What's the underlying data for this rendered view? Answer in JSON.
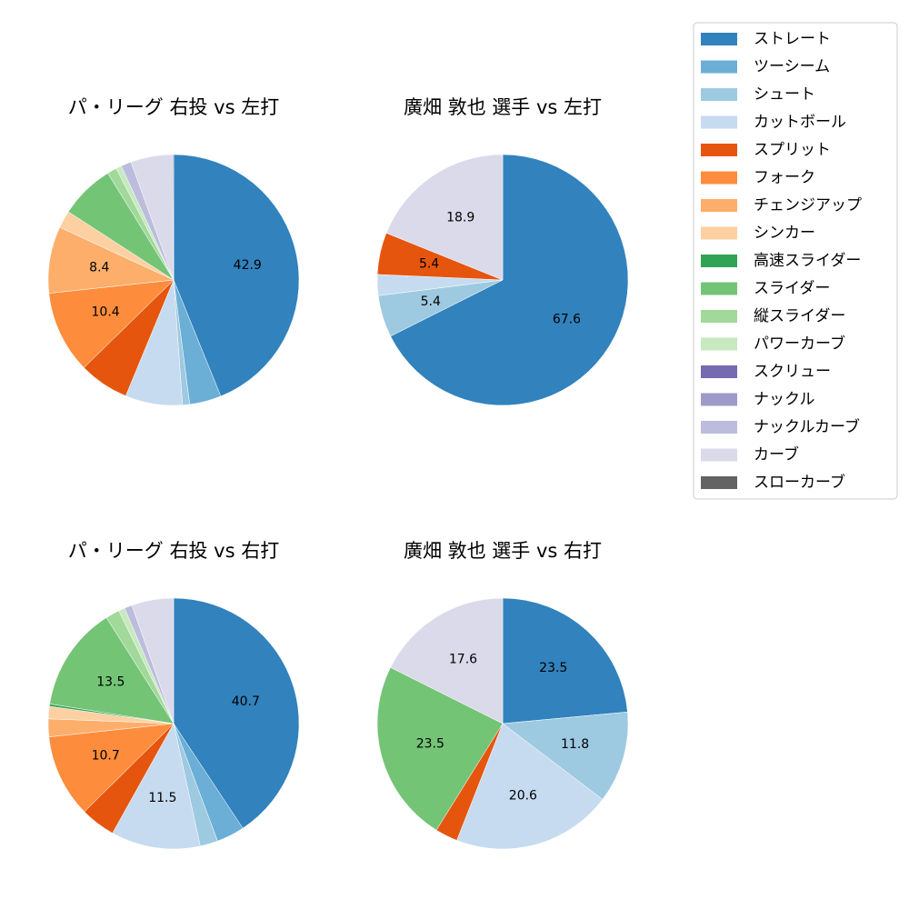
{
  "legend": [
    {
      "label": "ストレート",
      "color": "#3182bd"
    },
    {
      "label": "ツーシーム",
      "color": "#6baed6"
    },
    {
      "label": "シュート",
      "color": "#9ecae1"
    },
    {
      "label": "カットボール",
      "color": "#c6dbef"
    },
    {
      "label": "スプリット",
      "color": "#e6550d"
    },
    {
      "label": "フォーク",
      "color": "#fd8d3c"
    },
    {
      "label": "チェンジアップ",
      "color": "#fdae6b"
    },
    {
      "label": "シンカー",
      "color": "#fdd0a2"
    },
    {
      "label": "高速スライダー",
      "color": "#31a354"
    },
    {
      "label": "スライダー",
      "color": "#74c476"
    },
    {
      "label": "縦スライダー",
      "color": "#a1d99b"
    },
    {
      "label": "パワーカーブ",
      "color": "#c7e9c0"
    },
    {
      "label": "スクリュー",
      "color": "#756bb1"
    },
    {
      "label": "ナックル",
      "color": "#9e9ac8"
    },
    {
      "label": "ナックルカーブ",
      "color": "#bcbddc"
    },
    {
      "label": "カーブ",
      "color": "#dadaeb"
    },
    {
      "label": "スローカーブ",
      "color": "#636363"
    }
  ],
  "chart_data": [
    {
      "type": "pie",
      "title": "パ・リーグ 右投 vs 左打",
      "slices": [
        {
          "pitch": "ストレート",
          "value": 42.9,
          "label": "42.9"
        },
        {
          "pitch": "ツーシーム",
          "value": 4.0,
          "label": ""
        },
        {
          "pitch": "シュート",
          "value": 0.9,
          "label": ""
        },
        {
          "pitch": "カットボール",
          "value": 7.2,
          "label": ""
        },
        {
          "pitch": "スプリット",
          "value": 6.3,
          "label": ""
        },
        {
          "pitch": "フォーク",
          "value": 10.4,
          "label": "10.4"
        },
        {
          "pitch": "チェンジアップ",
          "value": 8.4,
          "label": "8.4"
        },
        {
          "pitch": "シンカー",
          "value": 2.2,
          "label": ""
        },
        {
          "pitch": "スライダー",
          "value": 6.9,
          "label": ""
        },
        {
          "pitch": "縦スライダー",
          "value": 1.2,
          "label": ""
        },
        {
          "pitch": "パワーカーブ",
          "value": 0.7,
          "label": ""
        },
        {
          "pitch": "ナックルカーブ",
          "value": 1.3,
          "label": ""
        },
        {
          "pitch": "カーブ",
          "value": 5.3,
          "label": ""
        },
        {
          "pitch": "スローカーブ",
          "value": 0.1,
          "label": ""
        }
      ]
    },
    {
      "type": "pie",
      "title": "廣畑 敦也 選手 vs 左打",
      "slices": [
        {
          "pitch": "ストレート",
          "value": 67.6,
          "label": "67.6"
        },
        {
          "pitch": "シュート",
          "value": 5.4,
          "label": "5.4"
        },
        {
          "pitch": "カットボール",
          "value": 2.7,
          "label": ""
        },
        {
          "pitch": "スプリット",
          "value": 5.4,
          "label": "5.4"
        },
        {
          "pitch": "カーブ",
          "value": 18.9,
          "label": "18.9"
        }
      ]
    },
    {
      "type": "pie",
      "title": "パ・リーグ 右投 vs 右打",
      "slices": [
        {
          "pitch": "ストレート",
          "value": 40.7,
          "label": "40.7"
        },
        {
          "pitch": "ツーシーム",
          "value": 3.6,
          "label": ""
        },
        {
          "pitch": "シュート",
          "value": 2.3,
          "label": ""
        },
        {
          "pitch": "カットボール",
          "value": 11.5,
          "label": "11.5"
        },
        {
          "pitch": "スプリット",
          "value": 4.5,
          "label": ""
        },
        {
          "pitch": "フォーク",
          "value": 10.7,
          "label": "10.7"
        },
        {
          "pitch": "チェンジアップ",
          "value": 2.3,
          "label": ""
        },
        {
          "pitch": "シンカー",
          "value": 1.6,
          "label": ""
        },
        {
          "pitch": "高速スライダー",
          "value": 0.3,
          "label": ""
        },
        {
          "pitch": "スライダー",
          "value": 13.5,
          "label": "13.5"
        },
        {
          "pitch": "縦スライダー",
          "value": 1.8,
          "label": ""
        },
        {
          "pitch": "パワーカーブ",
          "value": 0.8,
          "label": ""
        },
        {
          "pitch": "ナックルカーブ",
          "value": 1.0,
          "label": ""
        },
        {
          "pitch": "カーブ",
          "value": 5.4,
          "label": ""
        }
      ]
    },
    {
      "type": "pie",
      "title": "廣畑 敦也 選手 vs 右打",
      "slices": [
        {
          "pitch": "ストレート",
          "value": 23.5,
          "label": "23.5"
        },
        {
          "pitch": "シュート",
          "value": 11.8,
          "label": "11.8"
        },
        {
          "pitch": "カットボール",
          "value": 20.6,
          "label": "20.6"
        },
        {
          "pitch": "スプリット",
          "value": 2.9,
          "label": ""
        },
        {
          "pitch": "スライダー",
          "value": 23.5,
          "label": "23.5"
        },
        {
          "pitch": "カーブ",
          "value": 17.6,
          "label": "17.6"
        }
      ]
    }
  ]
}
